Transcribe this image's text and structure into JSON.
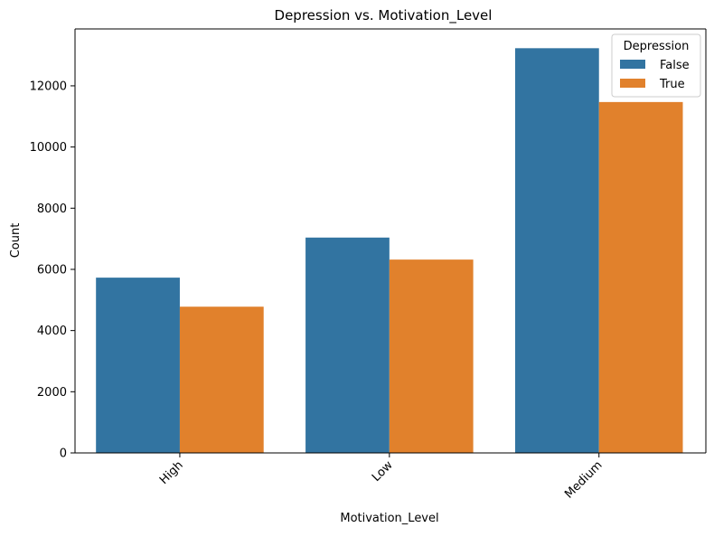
{
  "chart_data": {
    "type": "bar",
    "title": "Depression vs. Motivation_Level",
    "xlabel": "Motivation_Level",
    "ylabel": "Count",
    "categories": [
      "High",
      "Low",
      "Medium"
    ],
    "series": [
      {
        "name": "False",
        "color": "#3274a1",
        "values": [
          5730,
          7040,
          13230
        ]
      },
      {
        "name": "True",
        "color": "#e1812c",
        "values": [
          4780,
          6320,
          11470
        ]
      }
    ],
    "ylim": [
      0,
      13860
    ],
    "yticks": [
      0,
      2000,
      4000,
      6000,
      8000,
      10000,
      12000
    ],
    "ytick_labels": [
      "0",
      "2000",
      "4000",
      "6000",
      "8000",
      "10000",
      "12000"
    ],
    "grid": false,
    "legend": {
      "title": "Depression",
      "placement": "top-right",
      "entries": [
        "False",
        "True"
      ]
    }
  }
}
